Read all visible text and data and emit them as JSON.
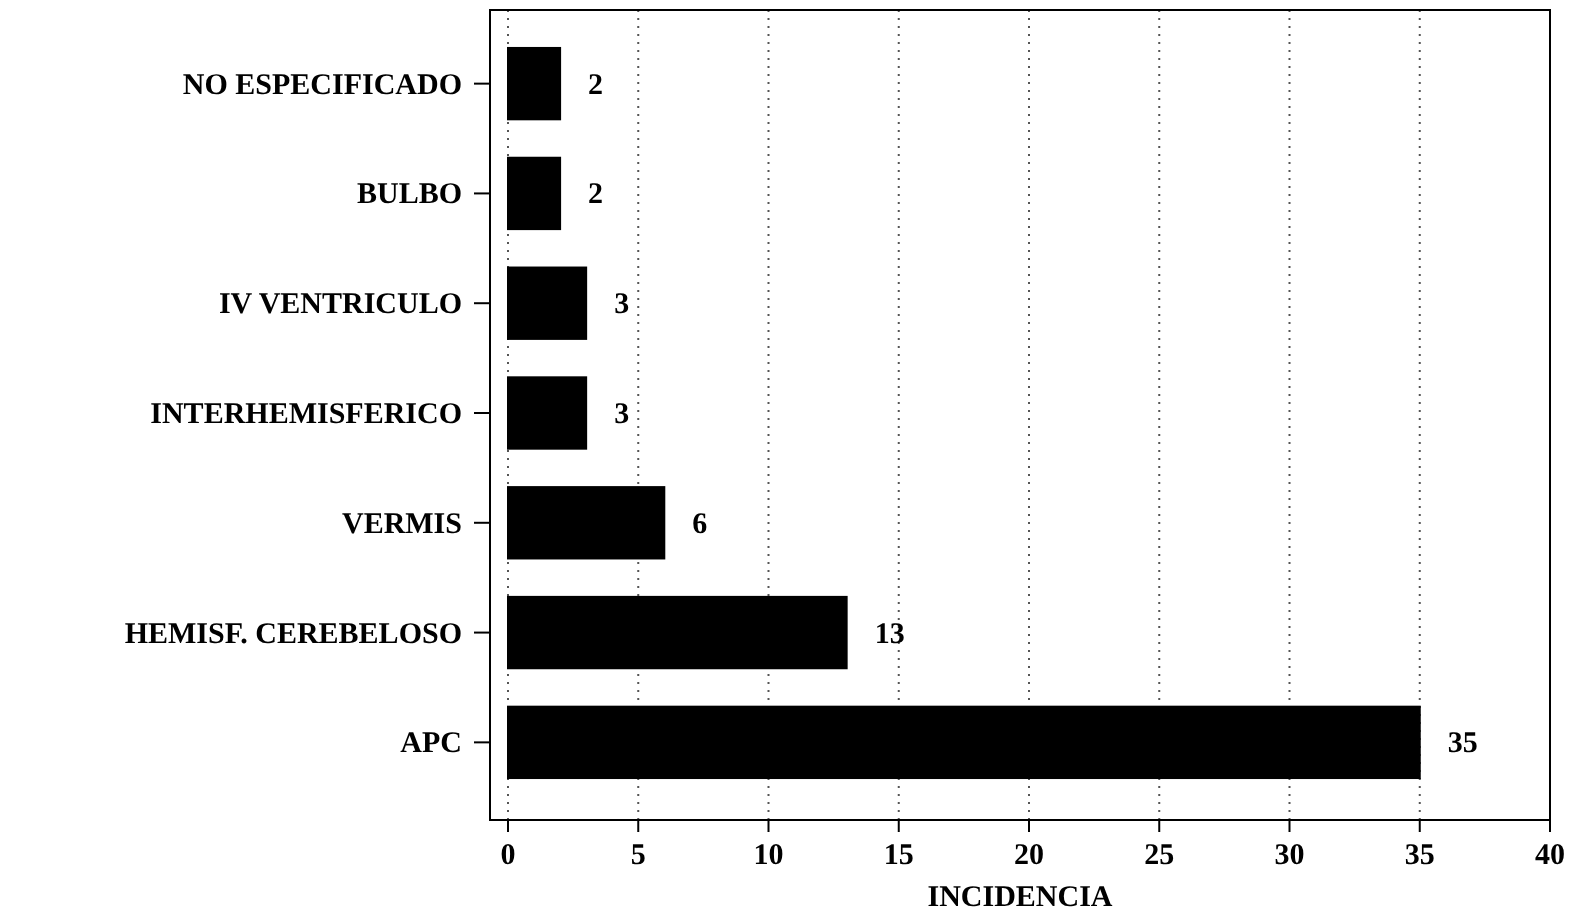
{
  "chart_data": {
    "type": "bar",
    "orientation": "horizontal",
    "xlabel": "INCIDENCIA",
    "categories": [
      "NO ESPECIFICADO",
      "BULBO",
      "IV VENTRICULO",
      "INTERHEMISFERICO",
      "VERMIS",
      "HEMISF. CEREBELOSO",
      "APC"
    ],
    "values": [
      2,
      2,
      3,
      3,
      6,
      13,
      35
    ],
    "color": "#000000",
    "xlim": [
      0,
      40
    ],
    "xticks": [
      0,
      5,
      10,
      15,
      20,
      25,
      30,
      35,
      40
    ],
    "grid": "x",
    "data_labels": true
  }
}
